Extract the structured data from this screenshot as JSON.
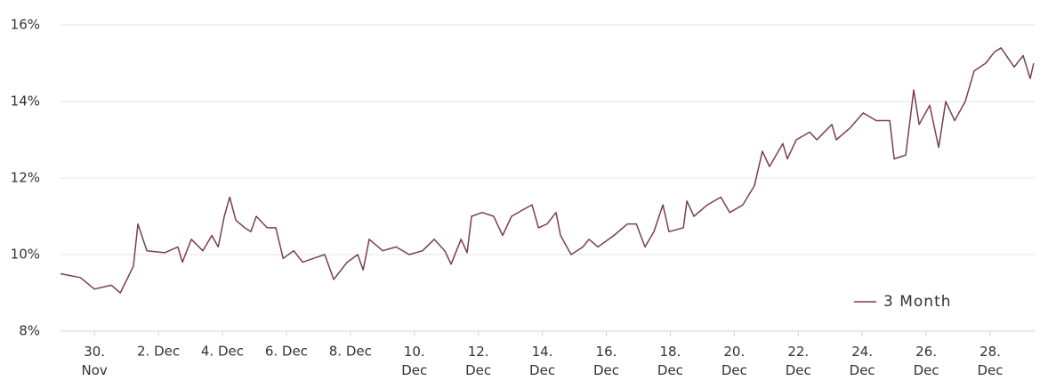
{
  "chart_data": {
    "type": "line",
    "x": [
      28.94,
      29.56,
      30,
      30.53,
      30.81,
      31.22,
      31.36,
      31.64,
      32.2,
      32.61,
      32.75,
      33.03,
      33.39,
      33.67,
      33.87,
      34.06,
      34.23,
      34.42,
      34.7,
      34.89,
      35.06,
      35.4,
      35.67,
      35.9,
      36.23,
      36.51,
      36.84,
      37.2,
      37.48,
      37.9,
      38.23,
      38.4,
      38.59,
      39.01,
      39.43,
      39.84,
      40.26,
      40.62,
      40.95,
      41.15,
      41.46,
      41.65,
      41.79,
      42.12,
      42.48,
      42.76,
      43.04,
      43.46,
      43.68,
      43.88,
      44.15,
      44.43,
      44.57,
      44.9,
      45.27,
      45.46,
      45.74,
      46.24,
      46.66,
      46.94,
      47.21,
      47.49,
      47.77,
      47.96,
      48.41,
      48.52,
      48.74,
      49.16,
      49.58,
      49.86,
      50.27,
      50.63,
      50.88,
      51.1,
      51.52,
      51.66,
      51.94,
      52.36,
      52.58,
      53.05,
      53.19,
      53.61,
      54.03,
      54.44,
      54.86,
      55.0,
      55.36,
      55.61,
      55.78,
      56.11,
      56.39,
      56.61,
      56.89,
      57.22,
      57.5,
      57.86,
      58.14,
      58.34,
      58.75,
      59.03,
      59.25,
      59.36
    ],
    "series": [
      {
        "name": "3 Month",
        "color": "#7b3d55",
        "values": [
          9.5,
          9.4,
          9.1,
          9.2,
          9.0,
          9.7,
          10.8,
          10.1,
          10.05,
          10.2,
          9.8,
          10.4,
          10.1,
          10.5,
          10.2,
          11.0,
          11.5,
          10.9,
          10.7,
          10.6,
          11.0,
          10.7,
          10.7,
          9.9,
          10.1,
          9.8,
          9.9,
          10.0,
          9.35,
          9.8,
          10.0,
          9.6,
          10.4,
          10.1,
          10.2,
          10.0,
          10.1,
          10.4,
          10.1,
          9.75,
          10.4,
          10.05,
          11.0,
          11.1,
          11.0,
          10.5,
          11.0,
          11.2,
          11.3,
          10.7,
          10.8,
          11.1,
          10.5,
          10.0,
          10.2,
          10.4,
          10.2,
          10.5,
          10.8,
          10.8,
          10.2,
          10.6,
          11.3,
          10.6,
          10.7,
          11.4,
          11.0,
          11.3,
          11.5,
          11.1,
          11.3,
          11.8,
          12.7,
          12.3,
          12.9,
          12.5,
          13.0,
          13.2,
          13.0,
          13.4,
          13.0,
          13.3,
          13.7,
          13.5,
          13.5,
          12.5,
          12.6,
          14.3,
          13.4,
          13.9,
          12.8,
          14.0,
          13.5,
          14.0,
          14.8,
          15.0,
          15.3,
          15.4,
          14.9,
          15.2,
          14.6,
          15.0
        ]
      }
    ],
    "xlim": [
      28.94,
      59.39
    ],
    "xticks": [
      {
        "value": 30,
        "label": "30. Nov"
      },
      {
        "value": 32,
        "label": "2. Dec"
      },
      {
        "value": 34,
        "label": "4. Dec"
      },
      {
        "value": 36,
        "label": "6. Dec"
      },
      {
        "value": 38,
        "label": "8. Dec"
      },
      {
        "value": 40,
        "label": "10. Dec"
      },
      {
        "value": 42,
        "label": "12. Dec"
      },
      {
        "value": 44,
        "label": "14. Dec"
      },
      {
        "value": 46,
        "label": "16. Dec"
      },
      {
        "value": 48,
        "label": "18. Dec"
      },
      {
        "value": 50,
        "label": "20. Dec"
      },
      {
        "value": 52,
        "label": "22. Dec"
      },
      {
        "value": 54,
        "label": "24. Dec"
      },
      {
        "value": 56,
        "label": "26. Dec"
      },
      {
        "value": 58,
        "label": "28. Dec"
      }
    ],
    "ylim": [
      8,
      16
    ],
    "yticks": [
      {
        "value": 8,
        "label": "8%"
      },
      {
        "value": 10,
        "label": "10%"
      },
      {
        "value": 12,
        "label": "12%"
      },
      {
        "value": 14,
        "label": "14%"
      },
      {
        "value": 16,
        "label": "16%"
      }
    ],
    "grid": true,
    "legend": "bottom-right"
  }
}
